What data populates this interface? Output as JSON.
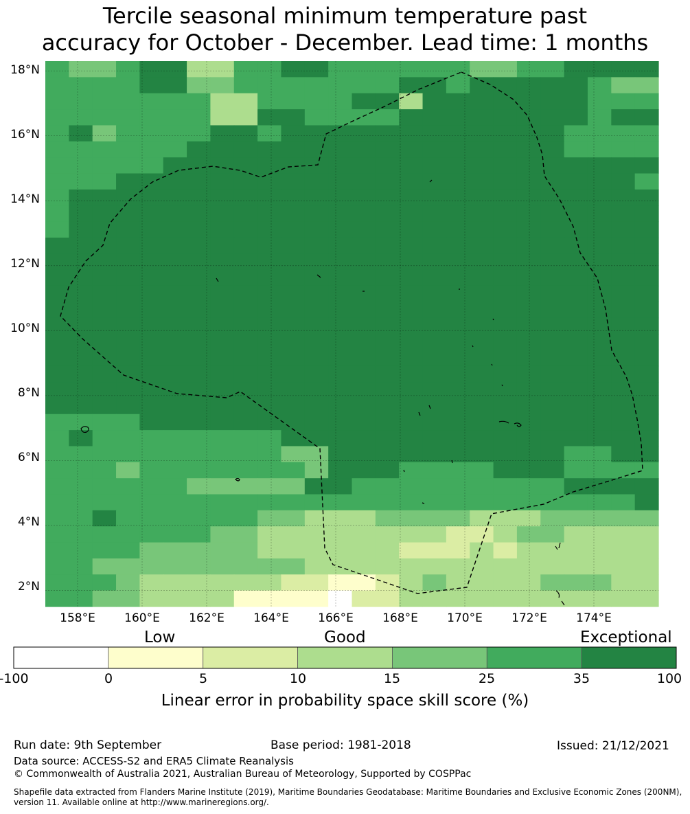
{
  "title_line1": "Tercile seasonal minimum temperature past",
  "title_line2": "accuracy for October - December. Lead time: 1 months",
  "map": {
    "lon_range": [
      157.0,
      176.0
    ],
    "lat_range": [
      1.5,
      18.3
    ],
    "lon_ticks": [
      "158°E",
      "160°E",
      "162°E",
      "164°E",
      "166°E",
      "168°E",
      "170°E",
      "172°E",
      "174°E"
    ],
    "lat_ticks": [
      "18°N",
      "16°N",
      "14°N",
      "12°N",
      "10°N",
      "8°N",
      "6°N",
      "4°N",
      "2°N"
    ],
    "boundary_style": "dashed black line (EEZ)",
    "grid": true,
    "category_colors": [
      "#ffffff",
      "#fefecc",
      "#dbeda4",
      "#addd8e",
      "#78c679",
      "#41ab5d",
      "#238443"
    ],
    "grid_rows": [
      "54456633556655555544556666",
      "55556644555555566566666544",
      "55555553355556636666666555",
      "55555553366555566666666566",
      "56455556656666666666665555",
      "55555566666666666666665555",
      "55555666666666666666666666",
      "55566666666666666666666665",
      "56666666666666666666666666",
      "56666666666666666666666666",
      "56666666666666666666666666",
      "66666666666666666666666666",
      "66666666666666666666666666",
      "66666666666666666666666666",
      "66666666666666666666666666",
      "66666666666666666666666666",
      "66666666666666666666666666",
      "66666666666666666666666666",
      "66666666666666666666666666",
      "66666666666666666666666666",
      "66666666666666666666666666",
      "66666666666666666666666666",
      "55556666666666666666666666",
      "56555555556666666666666666",
      "55555555554466666666665566",
      "55545555555466655556665555",
      "55555544444665555555556666",
      "55555555555555555555555556",
      "55655555544333444433344444",
      "55555554433333333223443333",
      "55554444433333322232333333",
      "55444444444333333333333333",
      "55543333332211234333344433",
      "55443333111102233333333333"
    ]
  },
  "colorbar": {
    "labels": [
      "Low",
      "Good",
      "Exceptional"
    ],
    "bins": [
      {
        "from": -100,
        "to": 0,
        "color": "#ffffff"
      },
      {
        "from": 0,
        "to": 5,
        "color": "#fefecc"
      },
      {
        "from": 5,
        "to": 10,
        "color": "#dbeda4"
      },
      {
        "from": 10,
        "to": 15,
        "color": "#addd8e"
      },
      {
        "from": 15,
        "to": 25,
        "color": "#78c679"
      },
      {
        "from": 25,
        "to": 35,
        "color": "#41ab5d"
      },
      {
        "from": 35,
        "to": 100,
        "color": "#238443"
      }
    ],
    "ticks": [
      "-100",
      "0",
      "5",
      "10",
      "15",
      "25",
      "35",
      "100"
    ],
    "title": "Linear error in probability space skill score (%)"
  },
  "footer": {
    "run_date": "Run date: 9th September",
    "base_period": "Base period: 1981-2018",
    "issued": "Issued: 21/12/2021",
    "data_source": "Data source: ACCESS-S2 and ERA5 Climate Reanalysis",
    "copyright": "© Commonwealth of Australia 2021, Australian Bureau of Meteorology, Supported by COSPPac",
    "shapefile": "Shapefile data extracted from Flanders Marine Institute (2019), Maritime Boundaries Geodatabase: Maritime Boundaries and Exclusive Economic Zones (200NM), version 11. Available online at http://www.marineregions.org/."
  }
}
